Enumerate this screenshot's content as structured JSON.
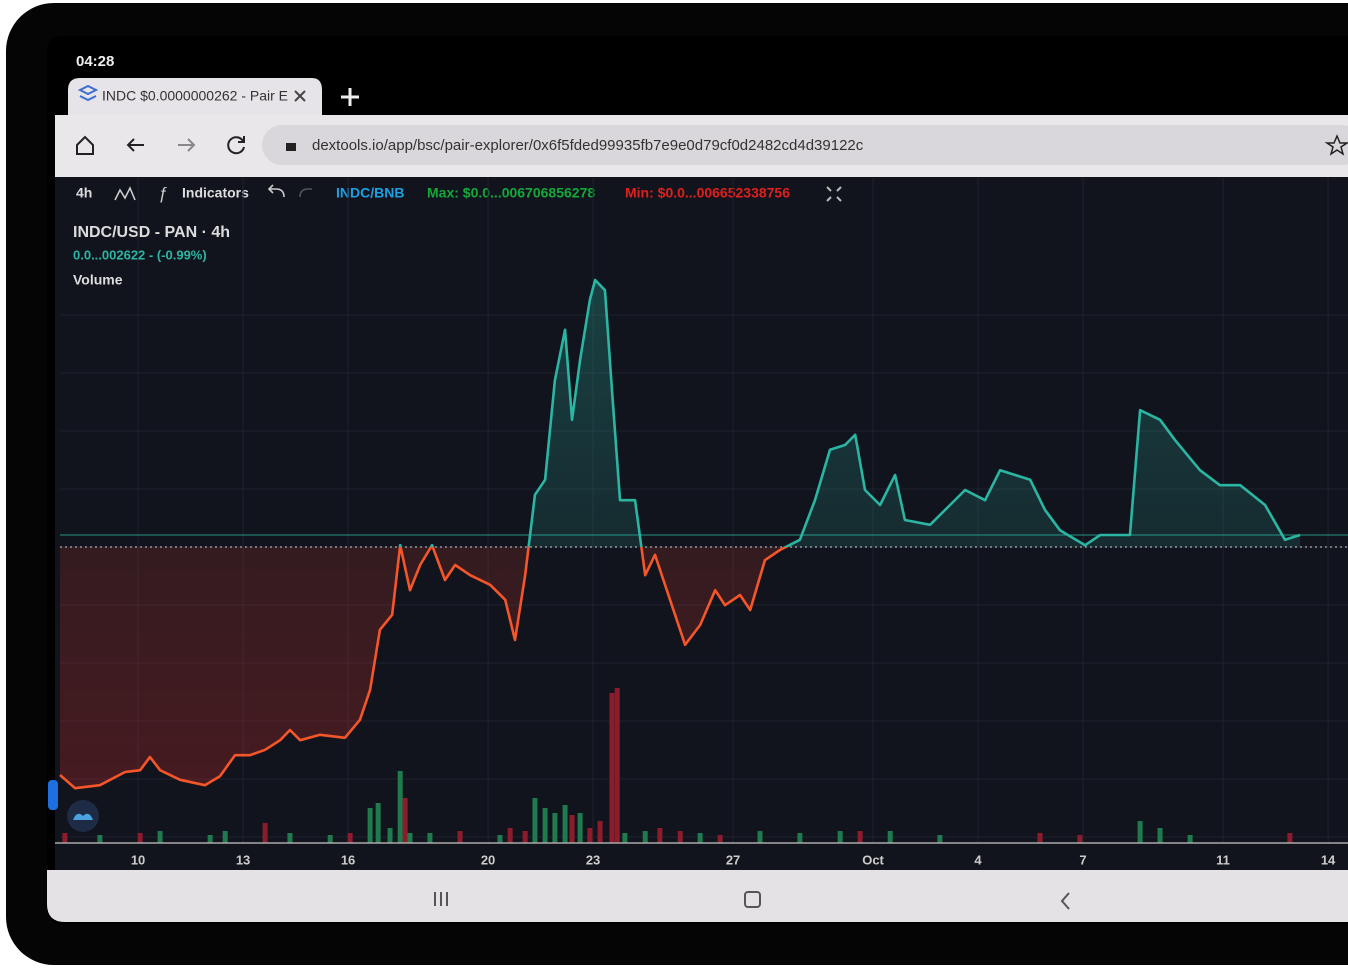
{
  "status_bar": {
    "time": "04:28"
  },
  "tab": {
    "title": "INDC $0.0000000262 - Pair E"
  },
  "address_bar": {
    "url": "dextools.io/app/bsc/pair-explorer/0x6f5fded99935fb7e9e0d79cf0d2482cd4d39122c"
  },
  "toolbar": {
    "interval": "4h",
    "indicators": "Indicators",
    "pair": "INDC/BNB",
    "max": "Max: $0.0...006706856278",
    "min": "Min: $0.0...006652338756"
  },
  "legend": {
    "change": "0.0...002622 - (-0.99%)"
  },
  "chart_data": {
    "type": "line",
    "x": [
      -2.23,
      -1.8,
      -1.09,
      -0.37,
      0.06,
      0.34,
      0.63,
      1.2,
      1.91,
      2.34,
      2.77,
      3.2,
      3.63,
      4.06,
      4.34,
      4.63,
      5.2,
      5.91,
      6.34,
      6.63,
      6.91,
      7.26,
      7.49,
      7.77,
      8.06,
      8.4,
      8.77,
      9.06,
      9.49,
      10.06,
      10.49,
      10.77,
      11.06,
      11.34,
      11.63,
      11.91,
      12.2,
      12.4,
      12.63,
      12.91,
      13.06,
      13.34,
      13.54,
      13.77,
      14.2,
      14.49,
      14.77,
      15.2,
      15.63,
      16.06,
      16.49,
      16.77,
      17.2,
      17.49,
      17.91,
      18.34,
      18.91,
      19.34,
      19.77,
      20.2,
      20.49,
      20.77,
      21.2,
      21.63,
      21.91,
      22.63,
      23.2,
      23.63,
      24.2,
      24.63,
      25.06,
      25.49,
      25.91,
      26.34,
      27.06,
      27.49,
      28.34,
      28.63,
      29.2,
      29.63,
      30.34,
      30.91,
      31.49,
      32.2,
      32.77,
      33.2
    ],
    "series": [
      {
        "name": "INDC/USD - PAN · 4h",
        "color": "#2bb5a3",
        "color_below": "#f4562a",
        "values": [
          12.5,
          10.3,
          10.8,
          13.0,
          13.3,
          15.5,
          13.3,
          11.7,
          10.8,
          12.3,
          15.8,
          15.8,
          16.7,
          18.3,
          20.0,
          18.3,
          19.2,
          18.7,
          21.7,
          26.7,
          36.7,
          39.2,
          50.8,
          43.3,
          47.5,
          50.8,
          45.0,
          47.5,
          45.8,
          44.2,
          41.7,
          35.0,
          45.8,
          59.2,
          61.7,
          78.3,
          86.7,
          71.7,
          81.7,
          91.7,
          95.0,
          93.3,
          76.7,
          58.3,
          58.3,
          45.8,
          49.2,
          41.7,
          34.2,
          37.5,
          43.3,
          40.8,
          42.5,
          40.0,
          48.3,
          50.0,
          51.7,
          58.3,
          66.7,
          67.5,
          69.2,
          60.0,
          57.5,
          62.5,
          55.0,
          54.2,
          57.5,
          60.0,
          58.3,
          63.3,
          62.5,
          61.7,
          56.7,
          53.3,
          50.8,
          52.5,
          52.5,
          73.3,
          71.7,
          68.3,
          63.3,
          60.8,
          60.8,
          57.5,
          51.7,
          52.5
        ]
      }
    ],
    "baseline": 50.5,
    "xlim": [
      -2.23,
      34.57
    ],
    "ylim": [
      0,
      100
    ],
    "xticks": [
      {
        "value": 0,
        "label": "10"
      },
      {
        "value": 3,
        "label": "13"
      },
      {
        "value": 6,
        "label": "16"
      },
      {
        "value": 10,
        "label": "20"
      },
      {
        "value": 13,
        "label": "23"
      },
      {
        "value": 17,
        "label": "27"
      },
      {
        "value": 21,
        "label": "Oct"
      },
      {
        "value": 24,
        "label": "4"
      },
      {
        "value": 27,
        "label": "7"
      },
      {
        "value": 31,
        "label": "11"
      },
      {
        "value": 34,
        "label": "14"
      }
    ],
    "volume": {
      "name": "Volume",
      "ylim": [
        0,
        600
      ],
      "x": [
        -2.09,
        -1.09,
        0.06,
        0.63,
        2.06,
        2.49,
        3.63,
        4.34,
        5.49,
        6.06,
        6.63,
        6.86,
        7.2,
        7.49,
        7.63,
        7.77,
        8.34,
        9.2,
        10.34,
        10.63,
        11.06,
        11.34,
        11.63,
        11.91,
        12.2,
        12.4,
        12.63,
        12.91,
        13.2,
        13.54,
        13.69,
        13.91,
        14.49,
        14.91,
        15.49,
        16.06,
        16.63,
        17.77,
        18.91,
        20.06,
        20.63,
        21.49,
        22.91,
        25.77,
        26.91,
        28.63,
        29.2,
        30.06,
        32.91
      ],
      "values": [
        10,
        8,
        10,
        12,
        8,
        12,
        20,
        10,
        8,
        10,
        35,
        40,
        15,
        72,
        45,
        10,
        10,
        12,
        8,
        15,
        12,
        45,
        35,
        30,
        38,
        28,
        30,
        15,
        22,
        150,
        155,
        10,
        12,
        15,
        12,
        10,
        8,
        12,
        10,
        12,
        12,
        12,
        8,
        10,
        8,
        22,
        15,
        8,
        10
      ],
      "colors": [
        "#8c1c2c",
        "#1f7a4d",
        "#8c1c2c",
        "#1f7a4d",
        "#1f7a4d",
        "#1f7a4d",
        "#8c1c2c",
        "#1f7a4d",
        "#1f7a4d",
        "#8c1c2c",
        "#1f7a4d",
        "#1f7a4d",
        "#1f7a4d",
        "#1f7a4d",
        "#8c1c2c",
        "#1f7a4d",
        "#1f7a4d",
        "#8c1c2c",
        "#1f7a4d",
        "#8c1c2c",
        "#8c1c2c",
        "#1f7a4d",
        "#1f7a4d",
        "#1f7a4d",
        "#1f7a4d",
        "#8c1c2c",
        "#1f7a4d",
        "#8c1c2c",
        "#8c1c2c",
        "#8c1c2c",
        "#8c1c2c",
        "#1f7a4d",
        "#1f7a4d",
        "#8c1c2c",
        "#8c1c2c",
        "#1f7a4d",
        "#8c1c2c",
        "#1f7a4d",
        "#1f7a4d",
        "#1f7a4d",
        "#8c1c2c",
        "#1f7a4d",
        "#1f7a4d",
        "#8c1c2c",
        "#8c1c2c",
        "#1f7a4d",
        "#1f7a4d",
        "#1f7a4d",
        "#8c1c2c"
      ]
    }
  }
}
